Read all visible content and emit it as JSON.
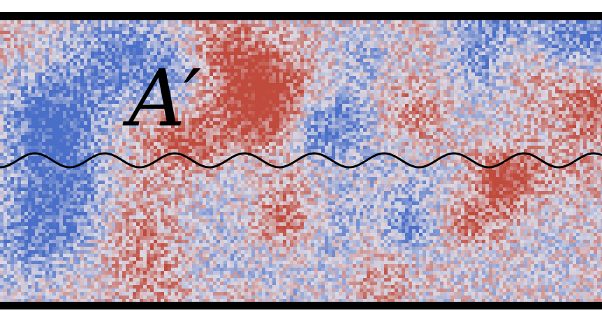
{
  "figure": {
    "label": "A′",
    "colors": {
      "border": "#000000",
      "wave": "#000000",
      "neutral": "#dcd9e3",
      "warm": "#c04a3c",
      "cool": "#4a6fc8"
    }
  }
}
